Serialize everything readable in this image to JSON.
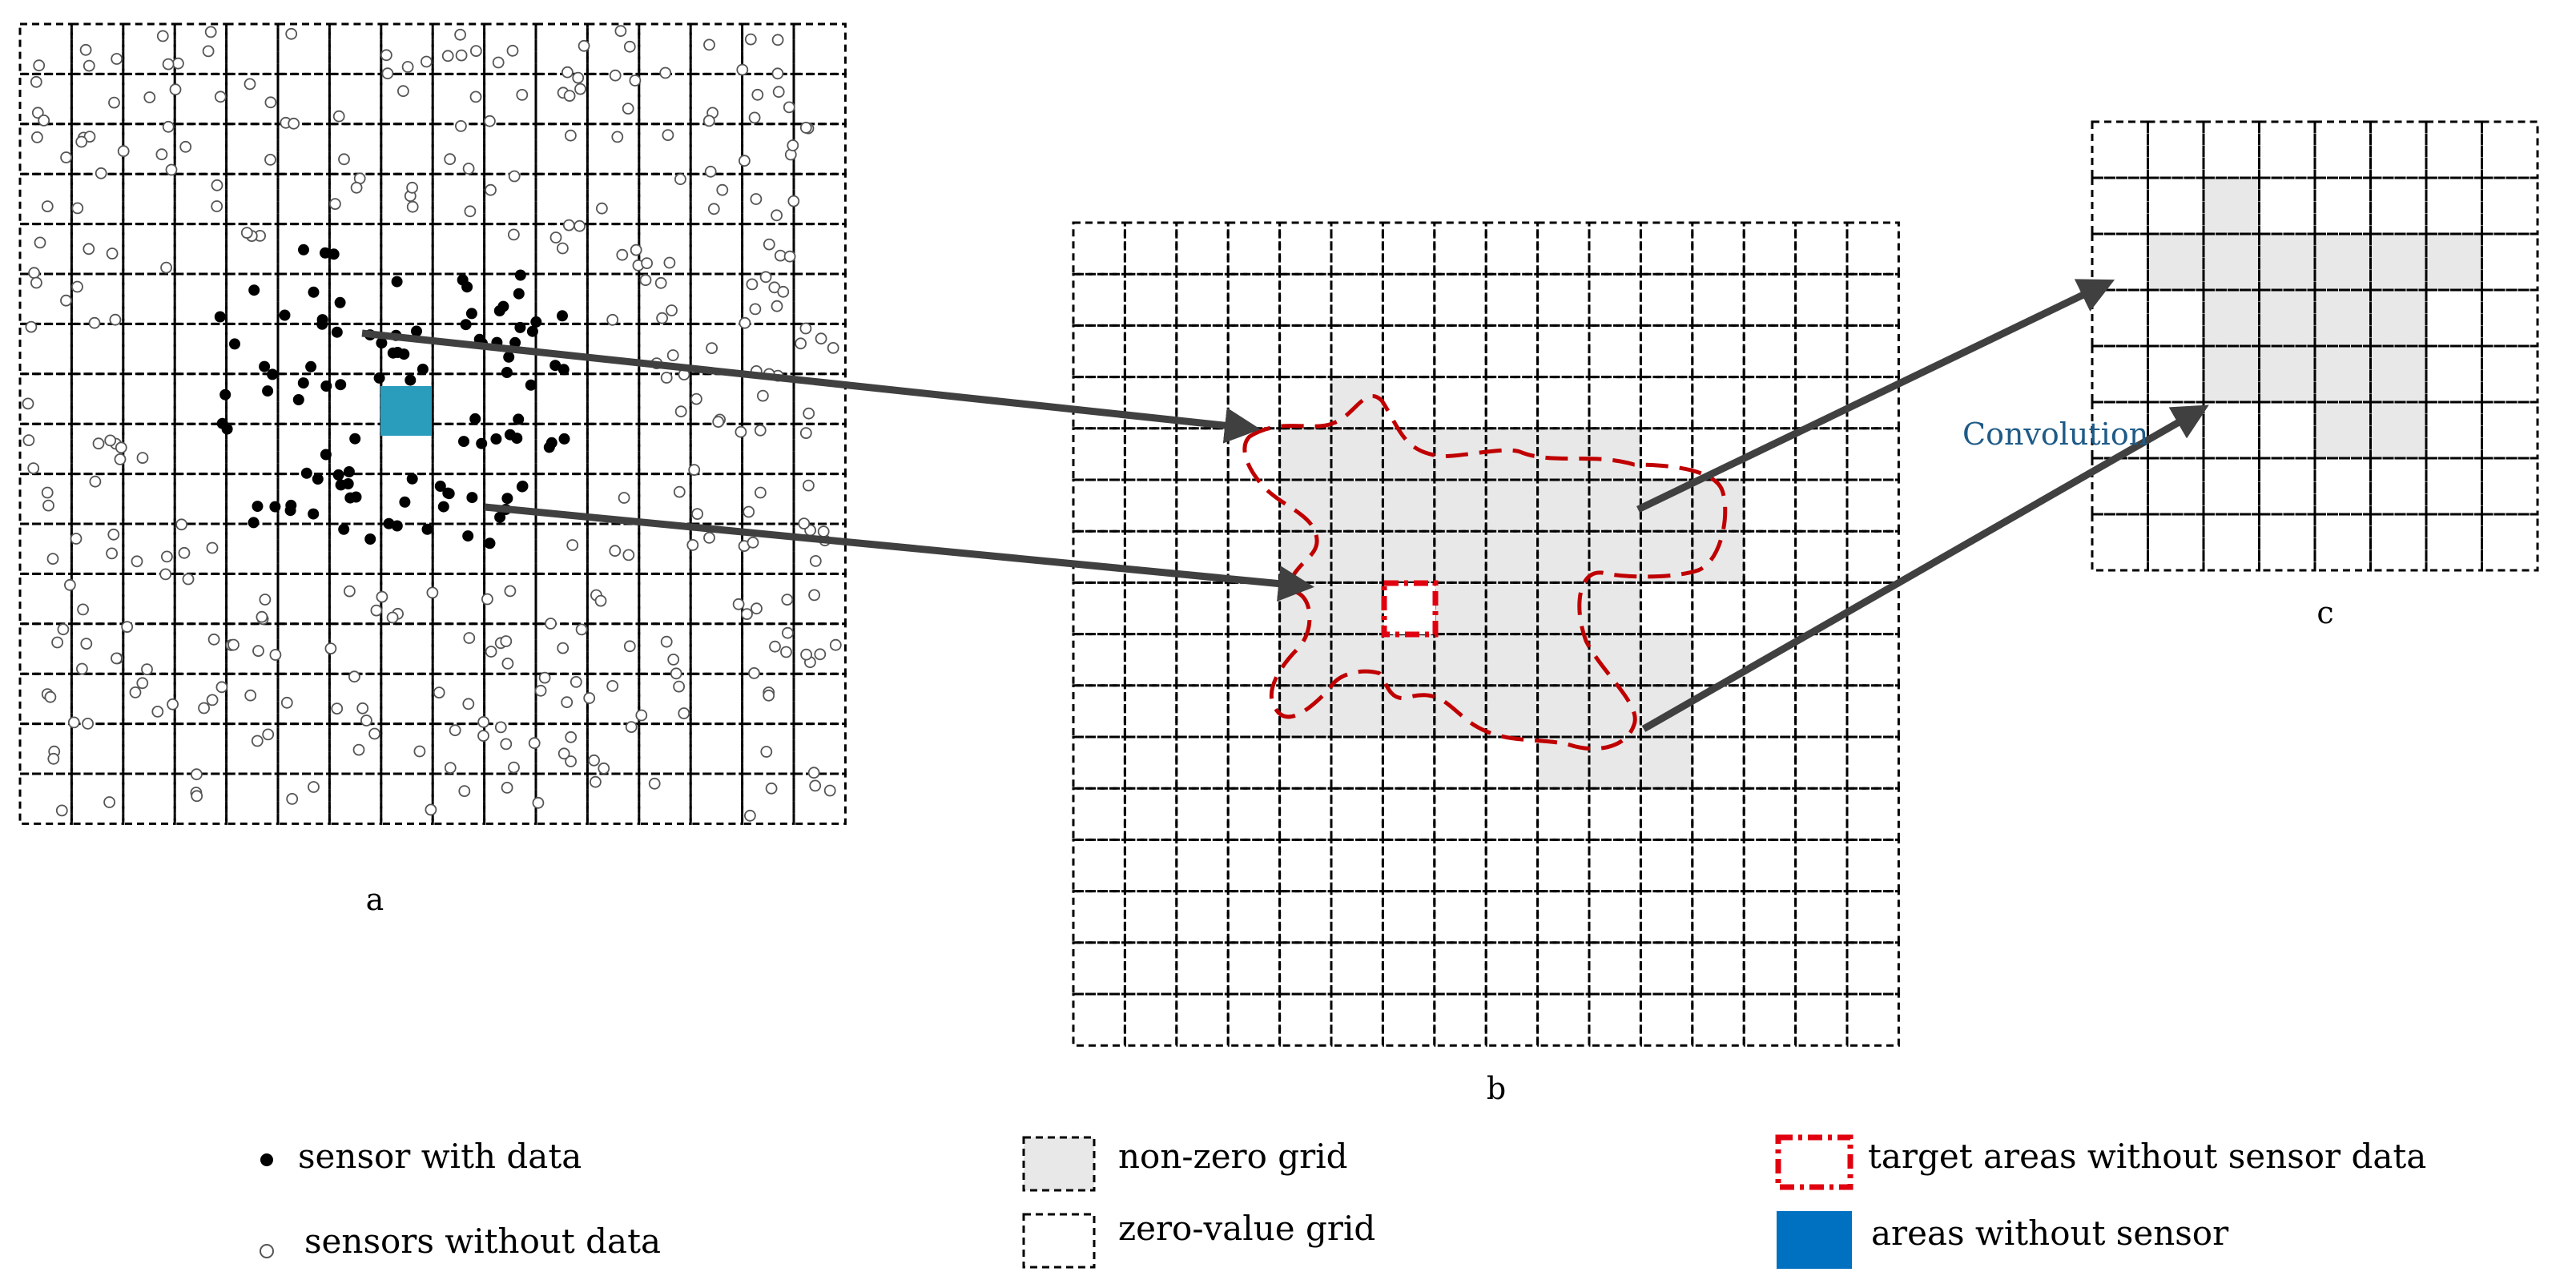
{
  "panel_labels": {
    "a": "a",
    "b": "b",
    "c": "c"
  },
  "annotation": {
    "convolution": "Convolution"
  },
  "legend": {
    "sensor_with_data": "sensor with data",
    "sensors_without_data": "sensors without data",
    "non_zero_grid": "non-zero grid",
    "zero_value_grid": "zero-value grid",
    "target_areas": "target areas without sensor data",
    "areas_without_sensor": "areas without sensor"
  },
  "colors": {
    "grid_line": "#000000",
    "filled_cell": "#e8e8e8",
    "no_sensor_area": "#2a9dbd",
    "legend_no_sensor": "#0070c0",
    "target_red": "#e0000f",
    "boundary_red": "#c00000",
    "arrow": "#404040",
    "convolution_text": "#1f5b87"
  },
  "icons": {
    "filled_sensor": "filled-circle",
    "empty_sensor": "hollow-circle",
    "arrow": "arrowhead"
  }
}
